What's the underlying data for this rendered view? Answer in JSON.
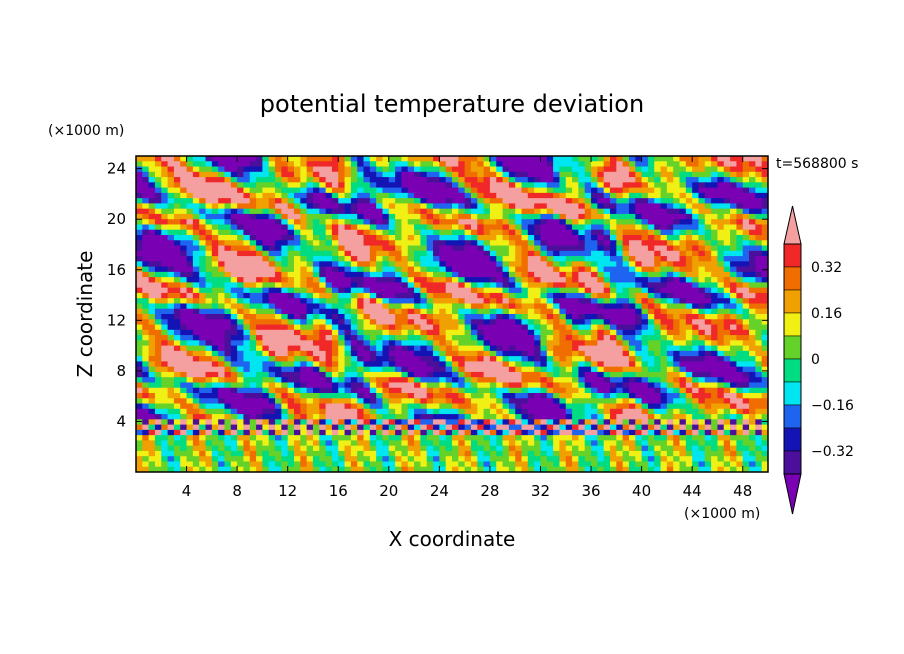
{
  "chart_data": {
    "type": "heatmap",
    "title": "potential temperature deviation",
    "xlabel": "X coordinate",
    "ylabel": "Z coordinate",
    "x_unit": "(×1000 m)",
    "y_unit": "(×1000 m)",
    "time_label": "t=568800 s",
    "xlim": [
      0,
      50
    ],
    "ylim": [
      0,
      25
    ],
    "x_ticks": [
      4,
      8,
      12,
      16,
      20,
      24,
      28,
      32,
      36,
      40,
      44,
      48
    ],
    "y_ticks": [
      4,
      8,
      12,
      16,
      20,
      24
    ],
    "colorbar": {
      "levels": [
        -0.4,
        -0.32,
        -0.24,
        -0.16,
        -0.08,
        0,
        0.08,
        0.16,
        0.24,
        0.32,
        0.4
      ],
      "tick_labels": [
        "0.32",
        "0.16",
        "0",
        "−0.16",
        "−0.32"
      ],
      "tick_values": [
        0.32,
        0.16,
        0,
        -0.16,
        -0.32
      ],
      "colors": [
        "#7a00b4",
        "#4b0f9b",
        "#1414b4",
        "#1e64f0",
        "#00e6f0",
        "#00dc82",
        "#64d228",
        "#f0f014",
        "#f0a000",
        "#f06e00",
        "#f02828",
        "#f5a0a0"
      ]
    }
  }
}
